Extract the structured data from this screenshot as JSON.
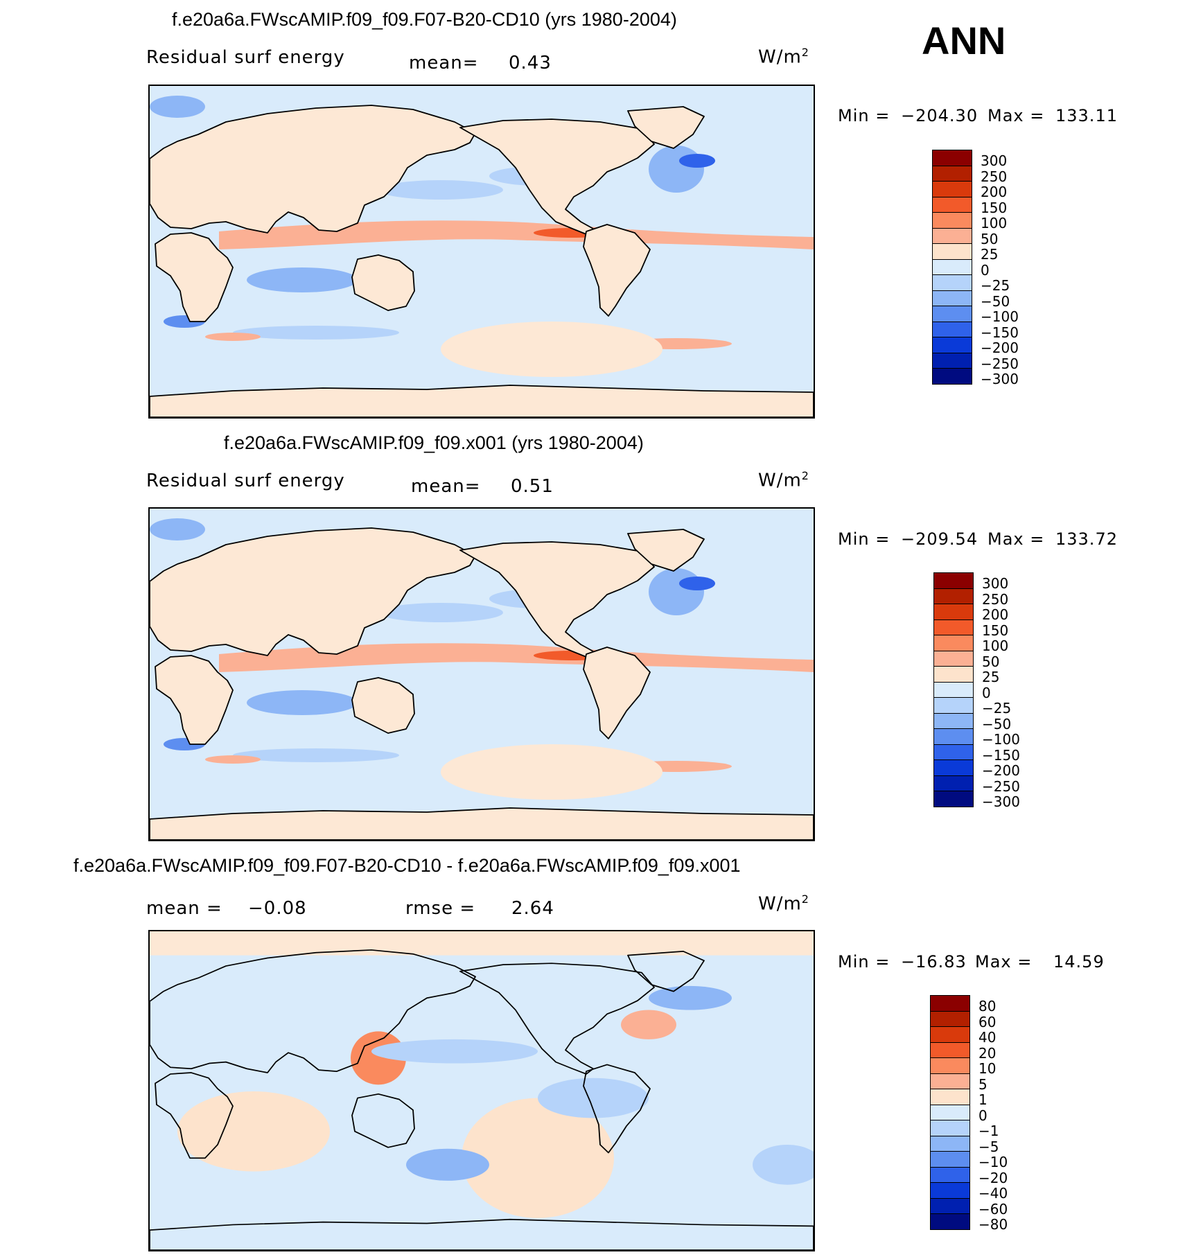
{
  "season": "ANN",
  "units": {
    "base": "W/m",
    "exp": "2"
  },
  "chart_data": [
    {
      "type": "heatmap",
      "title": "f.e20a6a.FWscAMIP.f09_f09.F07-B20-CD10 (yrs 1980-2004)",
      "variable": "Residual surf energy",
      "mean_label": "mean=",
      "mean_value": "0.43",
      "min_label": "Min  =",
      "min_value": "−204.30",
      "max_label": "Max  =",
      "max_value": "133.11",
      "levels": [
        "300",
        "250",
        "200",
        "150",
        "100",
        "50",
        "25",
        "0",
        "−25",
        "−50",
        "−100",
        "−150",
        "−200",
        "−250",
        "−300"
      ]
    },
    {
      "type": "heatmap",
      "title": "f.e20a6a.FWscAMIP.f09_f09.x001 (yrs 1980-2004)",
      "variable": "Residual surf energy",
      "mean_label": "mean=",
      "mean_value": "0.51",
      "min_label": "Min  =",
      "min_value": "−209.54",
      "max_label": "Max  =",
      "max_value": "133.72",
      "levels": [
        "300",
        "250",
        "200",
        "150",
        "100",
        "50",
        "25",
        "0",
        "−25",
        "−50",
        "−100",
        "−150",
        "−200",
        "−250",
        "−300"
      ]
    },
    {
      "type": "heatmap",
      "title": "f.e20a6a.FWscAMIP.f09_f09.F07-B20-CD10 - f.e20a6a.FWscAMIP.f09_f09.x001",
      "mean_label": "mean  =",
      "mean_value": "−0.08",
      "rmse_label": "rmse  =",
      "rmse_value": "2.64",
      "min_label": "Min  =",
      "min_value": "−16.83",
      "max_label": "Max  =",
      "max_value": "14.59",
      "levels": [
        "80",
        "60",
        "40",
        "20",
        "10",
        "5",
        "1",
        "0",
        "−1",
        "−5",
        "−10",
        "−20",
        "−40",
        "−60",
        "−80"
      ]
    }
  ],
  "colors": {
    "scale": [
      "#8b0000",
      "#b22000",
      "#d93a0c",
      "#f25a2a",
      "#fa8a5e",
      "#fbb094",
      "#fde3cc",
      "#d9ebfb",
      "#b5d3fa",
      "#8db6f6",
      "#5d8ef0",
      "#2f62ea",
      "#0a3ad8",
      "#0020b0",
      "#000b80"
    ],
    "ocean": "#d9ebfb",
    "land": "#fde8d5"
  }
}
